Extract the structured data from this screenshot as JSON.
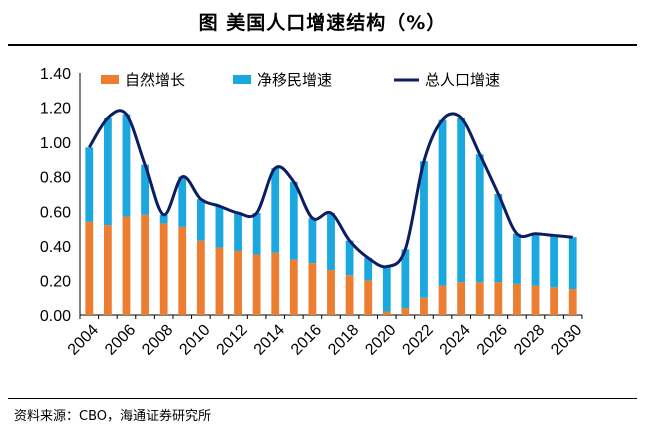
{
  "title": "图 美国人口增速结构（%）",
  "source": "资料来源：CBO，海通证券研究所",
  "colors": {
    "natural": "#ed7d31",
    "migration": "#1aa8df",
    "total": "#0b1d63"
  },
  "chart_data": {
    "type": "bar",
    "stacked": true,
    "categories": [
      2004,
      2005,
      2006,
      2007,
      2008,
      2009,
      2010,
      2011,
      2012,
      2013,
      2014,
      2015,
      2016,
      2017,
      2018,
      2019,
      2020,
      2021,
      2022,
      2023,
      2024,
      2025,
      2026,
      2027,
      2028,
      2029,
      2030
    ],
    "x_tick_labels": [
      "2004",
      "2006",
      "2008",
      "2010",
      "2012",
      "2014",
      "2016",
      "2018",
      "2020",
      "2022",
      "2024",
      "2026",
      "2028",
      "2030"
    ],
    "ylim": [
      0,
      1.4
    ],
    "y_ticks": [
      "0.00",
      "0.20",
      "0.40",
      "0.60",
      "0.80",
      "1.00",
      "1.20",
      "1.40"
    ],
    "legend_position": "top",
    "series": [
      {
        "name": "自然增长",
        "kind": "bar",
        "values": [
          0.54,
          0.52,
          0.57,
          0.58,
          0.53,
          0.51,
          0.43,
          0.39,
          0.37,
          0.35,
          0.36,
          0.32,
          0.3,
          0.26,
          0.23,
          0.2,
          0.02,
          0.04,
          0.1,
          0.17,
          0.19,
          0.19,
          0.19,
          0.18,
          0.17,
          0.16,
          0.15
        ]
      },
      {
        "name": "净移民增速",
        "kind": "bar",
        "values": [
          0.43,
          0.62,
          0.59,
          0.29,
          0.05,
          0.29,
          0.24,
          0.24,
          0.22,
          0.24,
          0.49,
          0.45,
          0.26,
          0.33,
          0.2,
          0.13,
          0.26,
          0.34,
          0.79,
          0.96,
          0.95,
          0.74,
          0.51,
          0.29,
          0.3,
          0.3,
          0.3
        ]
      },
      {
        "name": "总人口增速",
        "kind": "line",
        "values": [
          0.97,
          1.14,
          1.16,
          0.87,
          0.58,
          0.8,
          0.67,
          0.63,
          0.59,
          0.59,
          0.85,
          0.77,
          0.56,
          0.59,
          0.43,
          0.33,
          0.28,
          0.38,
          0.89,
          1.13,
          1.14,
          0.93,
          0.7,
          0.47,
          0.47,
          0.46,
          0.45
        ]
      }
    ]
  }
}
